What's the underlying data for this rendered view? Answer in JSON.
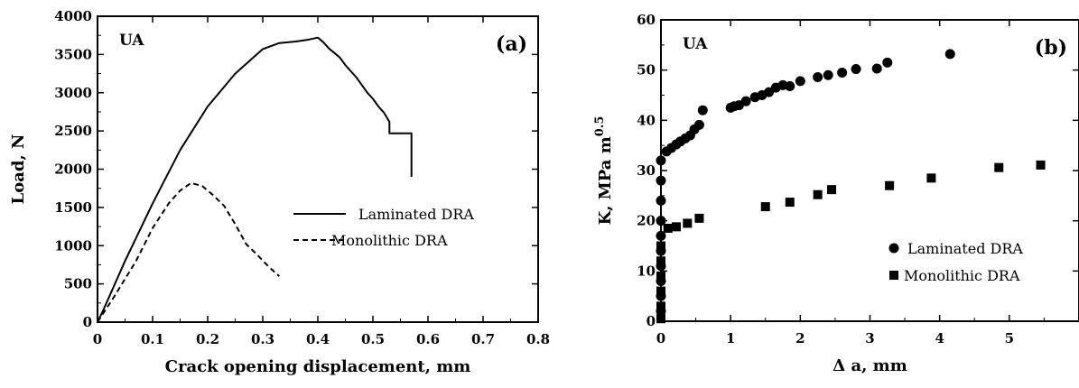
{
  "chart_data": [
    {
      "type": "line",
      "panel_label": "(a)",
      "tag": "UA",
      "xlabel": "Crack opening displacement, mm",
      "ylabel": "Load, N",
      "xlim": [
        0,
        0.8
      ],
      "ylim": [
        0,
        4000
      ],
      "xticks": [
        "0",
        "0.1",
        "0.2",
        "0.3",
        "0.4",
        "0.5",
        "0.6",
        "0.7",
        "0.8"
      ],
      "yticks": [
        "0",
        "500",
        "1000",
        "1500",
        "2000",
        "2500",
        "3000",
        "3500",
        "4000"
      ],
      "legend_placement": "center-right",
      "series": [
        {
          "name": "Laminated DRA",
          "style": "solid",
          "x": [
            0,
            0.01,
            0.05,
            0.1,
            0.15,
            0.2,
            0.25,
            0.3,
            0.33,
            0.36,
            0.38,
            0.4,
            0.41,
            0.42,
            0.43,
            0.44,
            0.45,
            0.46,
            0.47,
            0.48,
            0.49,
            0.5,
            0.51,
            0.52,
            0.53,
            0.53,
            0.57,
            0.57
          ],
          "y": [
            0,
            150,
            800,
            1550,
            2250,
            2820,
            3250,
            3570,
            3650,
            3670,
            3690,
            3720,
            3660,
            3580,
            3520,
            3460,
            3360,
            3280,
            3200,
            3100,
            3000,
            2920,
            2820,
            2740,
            2620,
            2470,
            2470,
            1900
          ]
        },
        {
          "name": "Monolithic DRA",
          "style": "dashed",
          "x": [
            0,
            0.03,
            0.07,
            0.1,
            0.13,
            0.15,
            0.17,
            0.19,
            0.21,
            0.23,
            0.25,
            0.27,
            0.29,
            0.31,
            0.33
          ],
          "y": [
            0,
            330,
            800,
            1230,
            1560,
            1720,
            1820,
            1780,
            1660,
            1520,
            1280,
            1020,
            880,
            730,
            600
          ]
        }
      ]
    },
    {
      "type": "scatter",
      "panel_label": "(b)",
      "tag": "UA",
      "xlabel": "Δ a, mm",
      "ylabel": "K, MPa m",
      "ylabel_superscript": "0.5",
      "xlim": [
        0,
        6
      ],
      "ylim": [
        0,
        60
      ],
      "xticks": [
        "0",
        "1",
        "2",
        "3",
        "4",
        "5"
      ],
      "yticks": [
        "0",
        "10",
        "20",
        "30",
        "40",
        "50",
        "60"
      ],
      "legend_placement": "bottom-right",
      "series": [
        {
          "name": "Laminated DRA",
          "marker": "circle",
          "x": [
            0,
            0,
            0,
            0,
            0,
            0,
            0,
            0,
            0,
            0,
            0.08,
            0.15,
            0.22,
            0.28,
            0.35,
            0.42,
            0.48,
            0.55,
            0.6,
            1.0,
            1.05,
            1.12,
            1.22,
            1.35,
            1.45,
            1.55,
            1.65,
            1.75,
            1.85,
            2.0,
            2.25,
            2.4,
            2.6,
            2.8,
            3.1,
            3.25,
            4.15
          ],
          "y": [
            2,
            5,
            8,
            11,
            14,
            17,
            20,
            24,
            28,
            32,
            33.8,
            34.5,
            35.2,
            35.8,
            36.4,
            37.0,
            38.2,
            39.1,
            42.0,
            42.5,
            42.8,
            43.0,
            43.8,
            44.6,
            45.0,
            45.6,
            46.5,
            47.0,
            46.8,
            47.8,
            48.6,
            49.0,
            49.5,
            50.2,
            50.3,
            51.5,
            53.2
          ]
        },
        {
          "name": "Monolithic DRA",
          "marker": "square",
          "x": [
            0,
            0,
            0,
            0,
            0,
            0,
            0.1,
            0.22,
            0.38,
            0.55,
            1.5,
            1.85,
            2.25,
            2.45,
            3.28,
            3.88,
            4.85,
            5.45
          ],
          "y": [
            0.5,
            3,
            6,
            9,
            12,
            15,
            18.5,
            18.8,
            19.5,
            20.5,
            22.8,
            23.7,
            25.2,
            26.2,
            27.0,
            28.5,
            30.6,
            31.1
          ]
        }
      ]
    }
  ]
}
